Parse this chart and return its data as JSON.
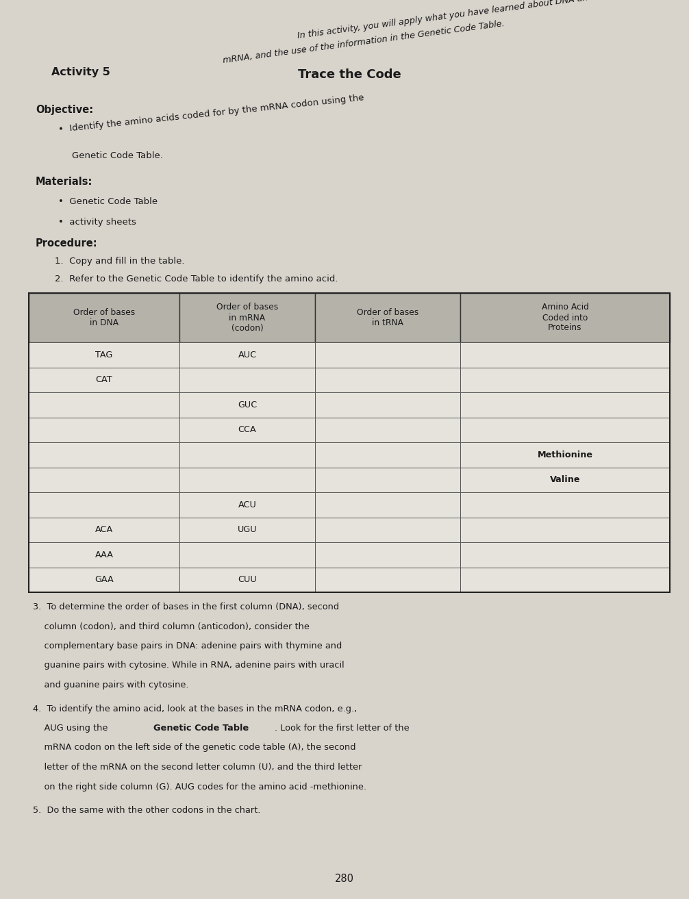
{
  "bg_color": "#d8d4cc",
  "page_bg": "#d8d4cc",
  "intro_line1": "In this activity, you will apply what you have learned about DNA and",
  "intro_line2": "mRNA, and the use of the information in the Genetic Code Table.",
  "intro_rotation": 7.5,
  "activity_label": "Activity 5",
  "activity_title": "Trace the Code",
  "objective_label": "Objective:",
  "objective_line1": "Identify the amino acids coded for by the mRNA codon using the",
  "objective_line2": "Genetic Code Table.",
  "objective_rotation": 6.0,
  "materials_label": "Materials:",
  "materials_bullets": [
    "Genetic Code Table",
    "activity sheets"
  ],
  "procedure_label": "Procedure:",
  "procedure_items": [
    "Copy and fill in the table.",
    "Refer to the Genetic Code Table to identify the amino acid."
  ],
  "table_headers": [
    "Order of bases\nin DNA",
    "Order of bases\nin mRNA\n(codon)",
    "Order of bases\nin tRNA",
    "Amino Acid\nCoded into\nProteins"
  ],
  "table_rows": [
    [
      "TAG",
      "AUC",
      "",
      ""
    ],
    [
      "CAT",
      "",
      "",
      ""
    ],
    [
      "",
      "GUC",
      "",
      ""
    ],
    [
      "",
      "CCA",
      "",
      ""
    ],
    [
      "",
      "",
      "",
      "Methionine"
    ],
    [
      "",
      "",
      "",
      "Valine"
    ],
    [
      "",
      "ACU",
      "",
      ""
    ],
    [
      "ACA",
      "UGU",
      "",
      ""
    ],
    [
      "AAA",
      "",
      "",
      ""
    ],
    [
      "GAA",
      "CUU",
      "",
      ""
    ]
  ],
  "step3_lines": [
    "3.  To determine the order of bases in the first column (DNA), second",
    "    column (codon), and third column (anticodon), consider the",
    "    complementary base pairs in DNA: adenine pairs with thymine and",
    "    guanine pairs with cytosine. While in RNA, adenine pairs with uracil",
    "    and guanine pairs with cytosine."
  ],
  "step4_line0": "4.  To identify the amino acid, look at the bases in the mRNA codon, e.g.,",
  "step4_line1a": "    AUG using the ",
  "step4_line1b": "Genetic Code Table",
  "step4_line1c": ". Look for the first letter of the",
  "step4_lines_rest": [
    "    mRNA codon on the left side of the genetic code table (A), the second",
    "    letter of the mRNA on the second letter column (U), and the third letter",
    "    on the right side column (G). AUG codes for the amino acid -methionine."
  ],
  "step5_text": "5.  Do the same with the other codons in the chart.",
  "page_number": "280"
}
